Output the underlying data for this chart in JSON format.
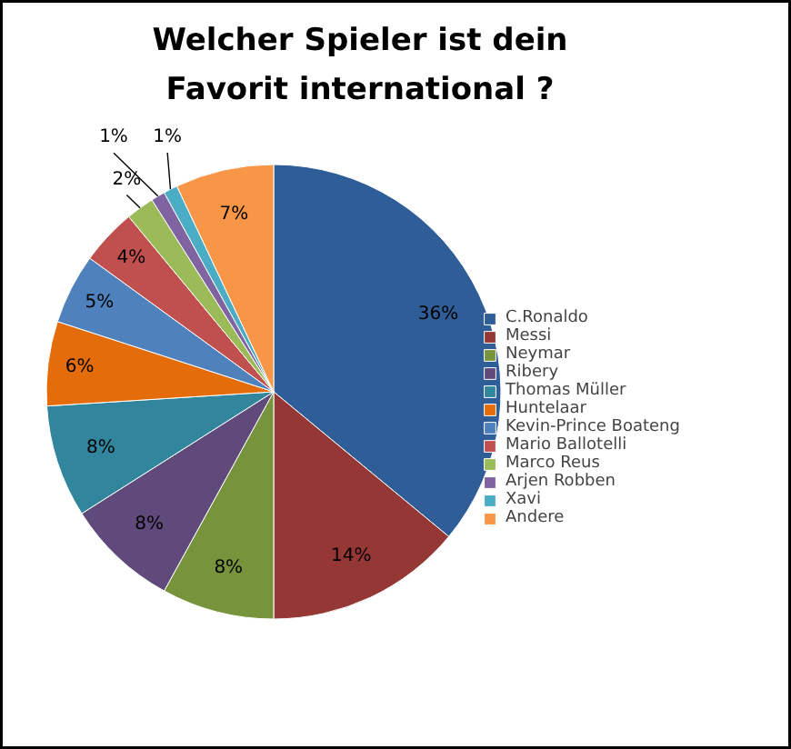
{
  "chart_data": {
    "type": "pie",
    "title": "Welcher Spieler ist dein Favorit international ?",
    "categories": [
      "C.Ronaldo",
      "Messi",
      "Neymar",
      "Ribery",
      "Thomas Müller",
      "Huntelaar",
      "Kevin-Prince Boateng",
      "Mario Ballotelli",
      "Marco Reus",
      "Arjen Robben",
      "Xavi",
      "Andere"
    ],
    "values": [
      36,
      14,
      8,
      8,
      8,
      6,
      5,
      4,
      2,
      1,
      1,
      7
    ],
    "colors": [
      "#2f5d97",
      "#953735",
      "#77933c",
      "#604a7b",
      "#31859c",
      "#e46c0a",
      "#4f81bd",
      "#c0504d",
      "#9bbb59",
      "#8064a2",
      "#4bacc6",
      "#f79646"
    ],
    "value_labels": [
      "36%",
      "14%",
      "8%",
      "8%",
      "8%",
      "6%",
      "5%",
      "4%",
      "2%",
      "1%",
      "1%",
      "7%"
    ],
    "legend": "right"
  }
}
